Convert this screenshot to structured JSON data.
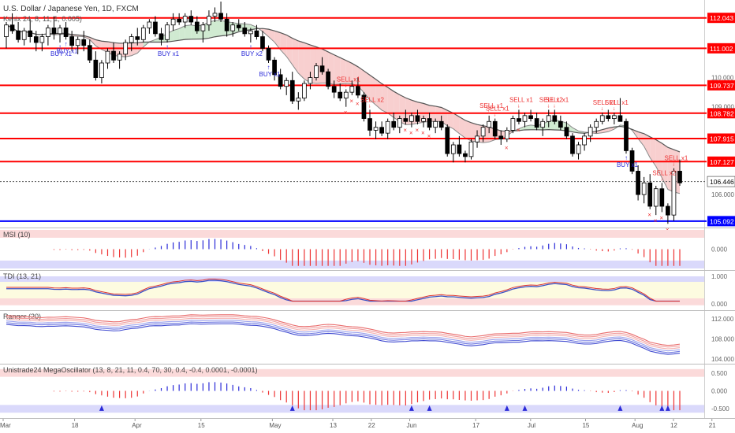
{
  "header": {
    "title": "U.S. Dollar / Japanese Yen, 1D, FXCM",
    "indicator": "Kenix 24, 8, 11, 1, 0.005)"
  },
  "colors": {
    "bull": "#ffffff",
    "bear": "#000000",
    "level": "#ff0000",
    "support": "#0000ff",
    "buy": "#2a2ad8",
    "sell": "#ee3333",
    "cloud_red": "#f7c7c7",
    "cloud_green": "#c8e6c9",
    "price_tag": "#ffffff"
  },
  "chart_data": [
    {
      "type": "candlestick",
      "pane": "price",
      "ylim": [
        104.9,
        112.6
      ],
      "levels": [
        {
          "value": 112.043,
          "label": "112.043"
        },
        {
          "value": 111.002,
          "label": "111.002"
        },
        {
          "value": 109.737,
          "label": "109.737"
        },
        {
          "value": 108.782,
          "label": "108.782"
        },
        {
          "value": 107.915,
          "label": "107.915"
        },
        {
          "value": 107.127,
          "label": "107.127"
        },
        {
          "value": 105.092,
          "label": "105.092",
          "support": true
        }
      ],
      "last_price": {
        "value": 106.446,
        "label": "106.446"
      },
      "y_ticks": [
        {
          "value": 110.0,
          "label": "110.000"
        },
        {
          "value": 109.0,
          "label": "109.000"
        },
        {
          "value": 106.0,
          "label": "106.000"
        }
      ],
      "x_ticks": [
        "Mar",
        "18",
        "Apr",
        "15",
        "May",
        "13",
        "22",
        "Jun",
        "17",
        "Jul",
        "15",
        "Aug",
        "12",
        "21"
      ],
      "annotations_buy": [
        "BUY x1",
        "BUY x1",
        "BUY x1",
        "BUY x2",
        "BUY x1",
        "BUY x1"
      ],
      "annotations_sell": [
        "SELL x2",
        "SELL x1",
        "SELL x1",
        "SELL x1",
        "SELL x1",
        "SELL x2",
        "SELL x1",
        "SELL x1",
        "SELL x1",
        "SELL x2",
        "SELL x1"
      ],
      "candles": [
        [
          111.4,
          111.9,
          111.0,
          111.8
        ],
        [
          111.8,
          112.2,
          111.5,
          111.6
        ],
        [
          111.6,
          111.9,
          111.2,
          111.3
        ],
        [
          111.3,
          111.7,
          111.1,
          111.6
        ],
        [
          111.6,
          112.0,
          111.2,
          111.4
        ],
        [
          111.4,
          111.6,
          110.9,
          111.2
        ],
        [
          111.2,
          111.5,
          110.9,
          111.4
        ],
        [
          111.4,
          111.8,
          111.1,
          111.7
        ],
        [
          111.7,
          112.1,
          111.3,
          111.5
        ],
        [
          111.5,
          111.8,
          111.2,
          111.7
        ],
        [
          111.7,
          111.9,
          111.3,
          111.4
        ],
        [
          111.4,
          111.6,
          110.9,
          111.1
        ],
        [
          111.1,
          111.4,
          110.8,
          111.3
        ],
        [
          111.3,
          111.6,
          110.9,
          111.1
        ],
        [
          111.1,
          111.3,
          110.5,
          110.6
        ],
        [
          110.6,
          110.9,
          109.9,
          110.0
        ],
        [
          110.0,
          110.6,
          109.8,
          110.5
        ],
        [
          110.5,
          111.0,
          110.3,
          110.9
        ],
        [
          110.9,
          111.2,
          110.5,
          110.6
        ],
        [
          110.6,
          110.9,
          110.3,
          110.8
        ],
        [
          110.8,
          111.3,
          110.6,
          111.2
        ],
        [
          111.2,
          111.5,
          110.9,
          111.4
        ],
        [
          111.4,
          111.7,
          111.1,
          111.3
        ],
        [
          111.3,
          111.8,
          111.2,
          111.7
        ],
        [
          111.7,
          112.0,
          111.5,
          111.9
        ],
        [
          111.9,
          112.1,
          111.4,
          111.5
        ],
        [
          111.5,
          111.7,
          111.1,
          111.3
        ],
        [
          111.3,
          111.9,
          111.2,
          111.8
        ],
        [
          111.8,
          112.2,
          111.6,
          112.0
        ],
        [
          112.0,
          112.2,
          111.8,
          111.9
        ],
        [
          111.9,
          112.2,
          111.7,
          112.1
        ],
        [
          112.1,
          112.3,
          111.8,
          111.9
        ],
        [
          111.9,
          112.1,
          111.5,
          111.6
        ],
        [
          111.6,
          111.9,
          111.2,
          111.8
        ],
        [
          111.8,
          112.3,
          111.6,
          112.1
        ],
        [
          112.1,
          112.4,
          111.9,
          112.2
        ],
        [
          112.2,
          112.6,
          111.9,
          112.0
        ],
        [
          112.0,
          112.2,
          111.4,
          111.6
        ],
        [
          111.6,
          111.9,
          111.4,
          111.8
        ],
        [
          111.8,
          112.0,
          111.6,
          111.7
        ],
        [
          111.7,
          111.9,
          111.4,
          111.5
        ],
        [
          111.5,
          111.7,
          111.2,
          111.6
        ],
        [
          111.6,
          111.8,
          111.3,
          111.4
        ],
        [
          111.4,
          111.6,
          110.9,
          111.0
        ],
        [
          111.0,
          111.1,
          110.5,
          110.6
        ],
        [
          110.6,
          110.7,
          109.9,
          110.1
        ],
        [
          110.1,
          110.3,
          109.6,
          109.7
        ],
        [
          109.7,
          110.0,
          109.4,
          109.9
        ],
        [
          109.9,
          110.2,
          109.1,
          109.2
        ],
        [
          109.2,
          109.5,
          108.9,
          109.3
        ],
        [
          109.3,
          109.9,
          109.2,
          109.8
        ],
        [
          109.8,
          110.2,
          109.6,
          110.0
        ],
        [
          110.0,
          110.5,
          109.9,
          110.4
        ],
        [
          110.4,
          110.7,
          110.1,
          110.2
        ],
        [
          110.2,
          110.3,
          109.6,
          109.7
        ],
        [
          109.7,
          109.9,
          109.3,
          109.5
        ],
        [
          109.5,
          109.8,
          109.2,
          109.3
        ],
        [
          109.3,
          109.6,
          109.0,
          109.5
        ],
        [
          109.5,
          109.9,
          109.4,
          109.7
        ],
        [
          109.7,
          110.0,
          109.3,
          109.4
        ],
        [
          109.4,
          109.5,
          108.5,
          108.6
        ],
        [
          108.6,
          108.9,
          108.0,
          108.2
        ],
        [
          108.2,
          108.5,
          107.9,
          108.3
        ],
        [
          108.3,
          108.5,
          108.0,
          108.1
        ],
        [
          108.1,
          108.6,
          107.9,
          108.5
        ],
        [
          108.5,
          108.8,
          108.2,
          108.3
        ],
        [
          108.3,
          108.7,
          108.1,
          108.6
        ],
        [
          108.6,
          108.9,
          108.4,
          108.5
        ],
        [
          108.5,
          108.8,
          108.3,
          108.7
        ],
        [
          108.7,
          108.9,
          108.4,
          108.5
        ],
        [
          108.5,
          108.7,
          108.3,
          108.6
        ],
        [
          108.6,
          108.8,
          108.2,
          108.3
        ],
        [
          108.3,
          108.6,
          108.1,
          108.5
        ],
        [
          108.5,
          108.7,
          108.2,
          108.3
        ],
        [
          108.3,
          108.4,
          107.3,
          107.4
        ],
        [
          107.4,
          107.8,
          107.1,
          107.7
        ],
        [
          107.7,
          108.0,
          107.3,
          107.4
        ],
        [
          107.4,
          107.5,
          107.1,
          107.3
        ],
        [
          107.3,
          107.9,
          107.2,
          107.8
        ],
        [
          107.8,
          108.2,
          107.6,
          108.0
        ],
        [
          108.0,
          108.4,
          107.8,
          108.3
        ],
        [
          108.3,
          108.7,
          108.1,
          108.5
        ],
        [
          108.5,
          108.6,
          107.9,
          108.0
        ],
        [
          108.0,
          108.2,
          107.7,
          107.9
        ],
        [
          107.9,
          108.3,
          107.8,
          108.2
        ],
        [
          108.2,
          108.7,
          108.1,
          108.6
        ],
        [
          108.6,
          108.9,
          108.4,
          108.5
        ],
        [
          108.5,
          108.8,
          108.3,
          108.7
        ],
        [
          108.7,
          108.9,
          108.5,
          108.6
        ],
        [
          108.6,
          108.8,
          108.2,
          108.3
        ],
        [
          108.3,
          108.6,
          108.0,
          108.5
        ],
        [
          108.5,
          108.9,
          108.3,
          108.7
        ],
        [
          108.7,
          108.9,
          108.4,
          108.5
        ],
        [
          108.5,
          108.7,
          108.2,
          108.3
        ],
        [
          108.3,
          108.5,
          107.9,
          108.0
        ],
        [
          108.0,
          108.1,
          107.3,
          107.4
        ],
        [
          107.4,
          107.8,
          107.2,
          107.7
        ],
        [
          107.7,
          108.1,
          107.5,
          108.0
        ],
        [
          108.0,
          108.4,
          107.8,
          108.3
        ],
        [
          108.3,
          108.6,
          108.1,
          108.5
        ],
        [
          108.5,
          108.8,
          108.4,
          108.7
        ],
        [
          108.7,
          108.9,
          108.5,
          108.6
        ],
        [
          108.6,
          108.8,
          108.4,
          108.7
        ],
        [
          108.7,
          109.3,
          108.5,
          108.5
        ],
        [
          108.5,
          108.6,
          107.4,
          107.5
        ],
        [
          107.5,
          107.6,
          106.7,
          106.8
        ],
        [
          106.8,
          107.0,
          105.8,
          106.0
        ],
        [
          106.0,
          106.6,
          105.7,
          106.4
        ],
        [
          106.4,
          106.7,
          105.5,
          105.6
        ],
        [
          105.6,
          106.3,
          105.3,
          106.2
        ],
        [
          106.2,
          106.4,
          105.4,
          105.6
        ],
        [
          105.6,
          105.7,
          105.0,
          105.3
        ],
        [
          105.3,
          106.9,
          105.1,
          106.8
        ],
        [
          106.8,
          107.2,
          106.3,
          106.4
        ]
      ]
    },
    {
      "type": "bar",
      "pane": "oscillator",
      "name": "MSI (10)",
      "ylim": [
        -1.2,
        1.2
      ],
      "y_ticks": [
        {
          "value": 0,
          "label": "0.000"
        }
      ]
    },
    {
      "type": "line",
      "pane": "oscillator",
      "name": "TDI (13, 21)",
      "ylim": [
        -0.2,
        1.2
      ],
      "y_ticks": [
        {
          "value": 1,
          "label": "1.000"
        },
        {
          "value": 0,
          "label": "0.000"
        }
      ]
    },
    {
      "type": "line",
      "pane": "oscillator",
      "name": "Ranger (20)",
      "ylim": [
        103.2,
        113.6
      ],
      "y_ticks": [
        {
          "value": 112,
          "label": "112.000"
        },
        {
          "value": 108,
          "label": "108.000"
        },
        {
          "value": 104,
          "label": "104.000"
        }
      ]
    },
    {
      "type": "bar",
      "pane": "oscillator",
      "name": "Unistrade24 MegaOscillator (13, 8, 21, 11, 0.4, 70, 30, 0.4, -0.4, 0.0001, -0.0001)",
      "ylim": [
        -0.75,
        0.75
      ],
      "y_ticks": [
        {
          "value": 0.5,
          "label": "0.500"
        },
        {
          "value": 0,
          "label": "0.000"
        },
        {
          "value": -0.5,
          "label": "-0.500"
        }
      ]
    }
  ]
}
